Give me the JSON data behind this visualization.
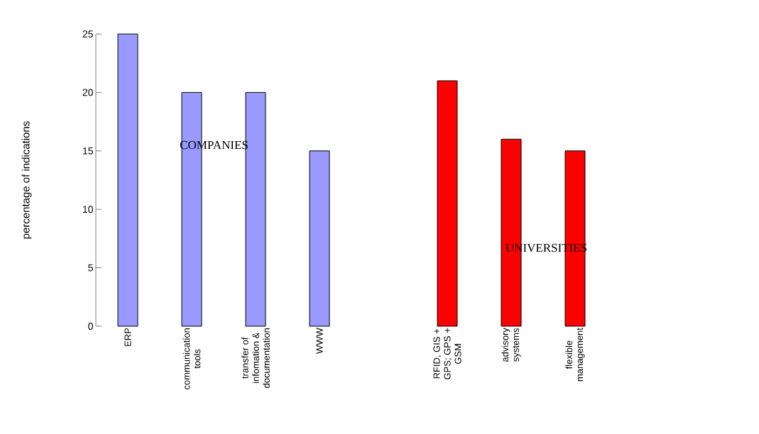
{
  "chart_data": {
    "type": "bar",
    "ylabel": "percentage of indications",
    "categories": [
      "ERP",
      "communication tools",
      "transfer of infomation & documentation",
      "WWW",
      null,
      "RFID, GIS + GPS; GPS + GSM",
      "advisory systems",
      "flexible management"
    ],
    "series": [
      {
        "name": "COMPANIES",
        "color": "#9999ff",
        "values": [
          25,
          20,
          20,
          15,
          null,
          null,
          null,
          null
        ]
      },
      {
        "name": "UNIVERSITIES",
        "color": "#ff0000",
        "values": [
          null,
          null,
          null,
          null,
          null,
          21,
          16,
          15
        ]
      }
    ],
    "ylim": [
      0,
      25
    ],
    "yticks": [
      0,
      5,
      10,
      15,
      20,
      25
    ]
  }
}
